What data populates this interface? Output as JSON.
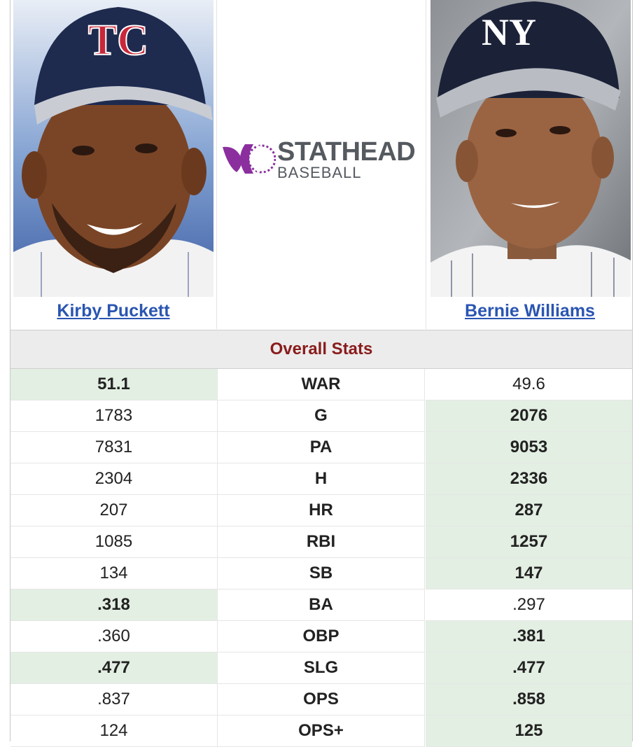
{
  "players": {
    "left": {
      "name": "Kirby Puckett",
      "cap_logo": "TC"
    },
    "right": {
      "name": "Bernie Williams",
      "cap_logo": "NY"
    }
  },
  "logo": {
    "line1": "STATHEAD",
    "line2": "BASEBALL"
  },
  "section_title": "Overall Stats",
  "stats": [
    {
      "stat": "WAR",
      "left": "51.1",
      "right": "49.6",
      "leader": "left"
    },
    {
      "stat": "G",
      "left": "1783",
      "right": "2076",
      "leader": "right"
    },
    {
      "stat": "PA",
      "left": "7831",
      "right": "9053",
      "leader": "right"
    },
    {
      "stat": "H",
      "left": "2304",
      "right": "2336",
      "leader": "right"
    },
    {
      "stat": "HR",
      "left": "207",
      "right": "287",
      "leader": "right"
    },
    {
      "stat": "RBI",
      "left": "1085",
      "right": "1257",
      "leader": "right"
    },
    {
      "stat": "SB",
      "left": "134",
      "right": "147",
      "leader": "right"
    },
    {
      "stat": "BA",
      "left": ".318",
      "right": ".297",
      "leader": "left"
    },
    {
      "stat": "OBP",
      "left": ".360",
      "right": ".381",
      "leader": "right"
    },
    {
      "stat": "SLG",
      "left": ".477",
      "right": ".477",
      "leader": "both"
    },
    {
      "stat": "OPS",
      "left": ".837",
      "right": ".858",
      "leader": "right"
    },
    {
      "stat": "OPS+",
      "left": "124",
      "right": "125",
      "leader": "right"
    }
  ],
  "colors": {
    "link": "#2a55b2",
    "section_title": "#8a1c1c",
    "leader_bg": "#e3efe3",
    "logo_purple": "#8b2f9f"
  }
}
